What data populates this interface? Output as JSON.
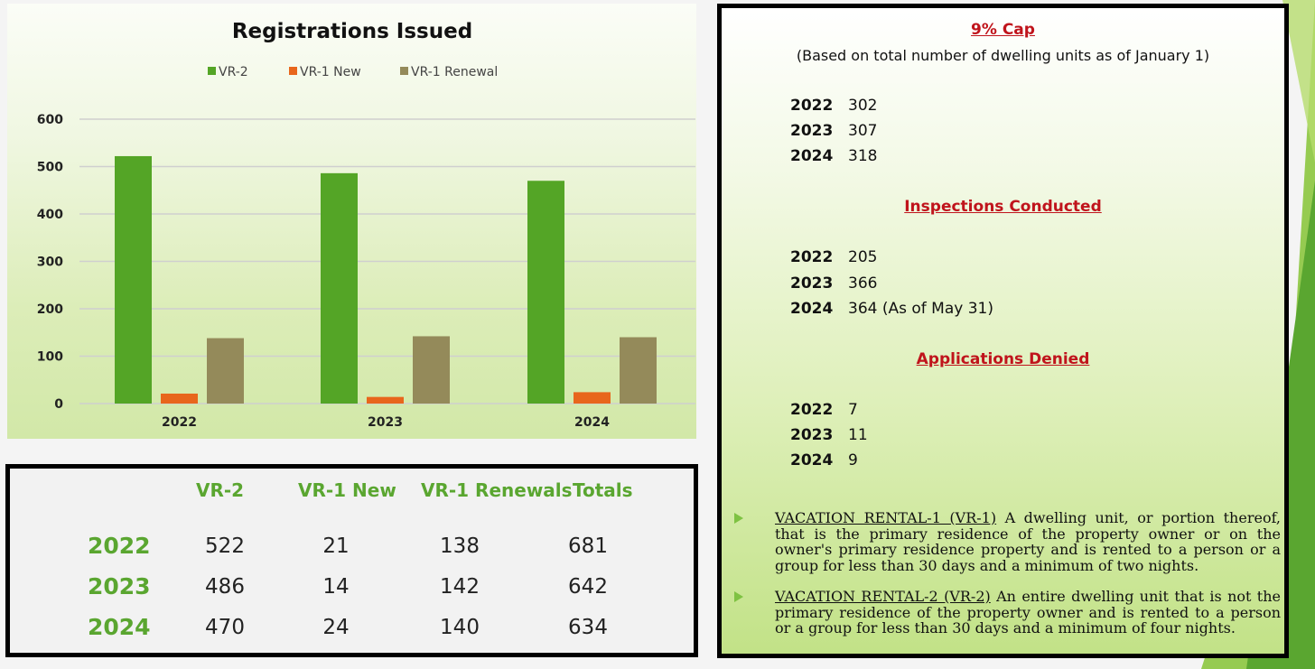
{
  "chart_data": {
    "type": "bar",
    "title": "Registrations Issued",
    "categories": [
      "2022",
      "2023",
      "2024"
    ],
    "series": [
      {
        "name": "VR-2",
        "values": [
          522,
          486,
          470
        ],
        "color": "#54a526"
      },
      {
        "name": "VR-1 New",
        "values": [
          21,
          14,
          24
        ],
        "color": "#e8661c"
      },
      {
        "name": "VR-1 Renewal",
        "values": [
          138,
          142,
          140
        ],
        "color": "#948a5a"
      }
    ],
    "yticks": [
      "0",
      "100",
      "200",
      "300",
      "400",
      "500",
      "600"
    ],
    "ylim": [
      0,
      600
    ],
    "grid": true,
    "legend": "top"
  },
  "table": {
    "headers": [
      "VR-2",
      "VR-1 New",
      "VR-1 Renewals",
      "Totals"
    ],
    "rows": [
      {
        "year": "2022",
        "values": [
          "522",
          "21",
          "138",
          "681"
        ]
      },
      {
        "year": "2023",
        "values": [
          "486",
          "14",
          "142",
          "642"
        ]
      },
      {
        "year": "2024",
        "values": [
          "470",
          "24",
          "140",
          "634"
        ]
      }
    ]
  },
  "info": {
    "cap": {
      "title": "9% Cap",
      "subtitle": "(Based on total number of dwelling units as of January 1)",
      "items": [
        {
          "year": "2022",
          "value": "302"
        },
        {
          "year": "2023",
          "value": "307"
        },
        {
          "year": "2024",
          "value": "318"
        }
      ]
    },
    "inspections": {
      "title": "Inspections Conducted",
      "items": [
        {
          "year": "2022",
          "value": "205"
        },
        {
          "year": "2023",
          "value": "366"
        },
        {
          "year": "2024",
          "value": "364 (As of May 31)"
        }
      ]
    },
    "denied": {
      "title": "Applications Denied",
      "items": [
        {
          "year": "2022",
          "value": "7"
        },
        {
          "year": "2023",
          "value": "11"
        },
        {
          "year": "2024",
          "value": "9"
        }
      ]
    },
    "definitions": [
      {
        "term": "VACATION RENTAL-1 (VR-1)",
        "text": " A dwelling unit, or portion thereof, that is the primary residence of the property owner or on the owner's primary residence property and is rented to a person or a group for less than 30 days and a minimum of two nights."
      },
      {
        "term": "VACATION RENTAL-2 (VR-2)",
        "text": " An entire dwelling unit that is not the primary residence of the property owner and is rented to a person or a group for less than 30 days and a minimum of four nights."
      }
    ]
  }
}
